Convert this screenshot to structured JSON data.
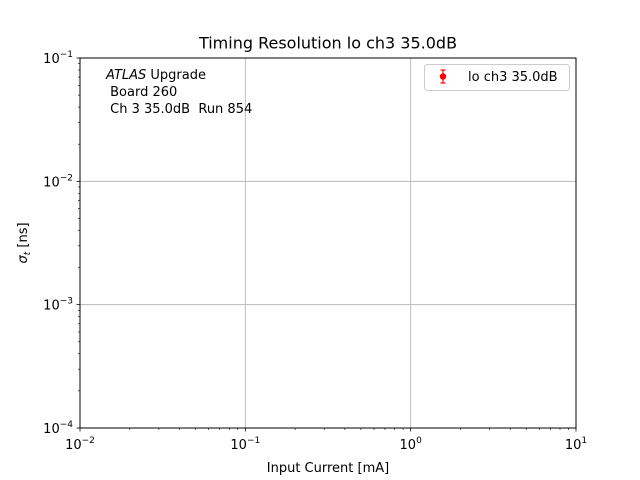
{
  "chart_data": {
    "type": "scatter",
    "title": "Timing Resolution lo ch3 35.0dB",
    "xlabel": "Input Current [mA]",
    "ylabel_symbol": "σ",
    "ylabel_sub": "t",
    "ylabel_unit": " [ns]",
    "xscale": "log",
    "yscale": "log",
    "xlim": [
      0.01,
      10
    ],
    "ylim": [
      0.0001,
      0.1
    ],
    "grid": true,
    "x_ticks": [
      {
        "value": 0.01,
        "base": "10",
        "exp": "−2"
      },
      {
        "value": 0.1,
        "base": "10",
        "exp": "−1"
      },
      {
        "value": 1,
        "base": "10",
        "exp": "0"
      },
      {
        "value": 10,
        "base": "10",
        "exp": "1"
      }
    ],
    "y_ticks": [
      {
        "value": 0.0001,
        "base": "10",
        "exp": "−4"
      },
      {
        "value": 0.001,
        "base": "10",
        "exp": "−3"
      },
      {
        "value": 0.01,
        "base": "10",
        "exp": "−2"
      },
      {
        "value": 0.1,
        "base": "10",
        "exp": "−1"
      }
    ],
    "series": [
      {
        "name": "lo ch3 35.0dB",
        "color": "#ff0000",
        "marker": "circle",
        "errorbars": true,
        "points": []
      }
    ],
    "legend_position": "top-right",
    "annotation": {
      "line1_italic": "ATLAS",
      "line1_rest": " Upgrade",
      "line2": " Board 260",
      "line3": " Ch 3 35.0dB  Run 854"
    }
  }
}
